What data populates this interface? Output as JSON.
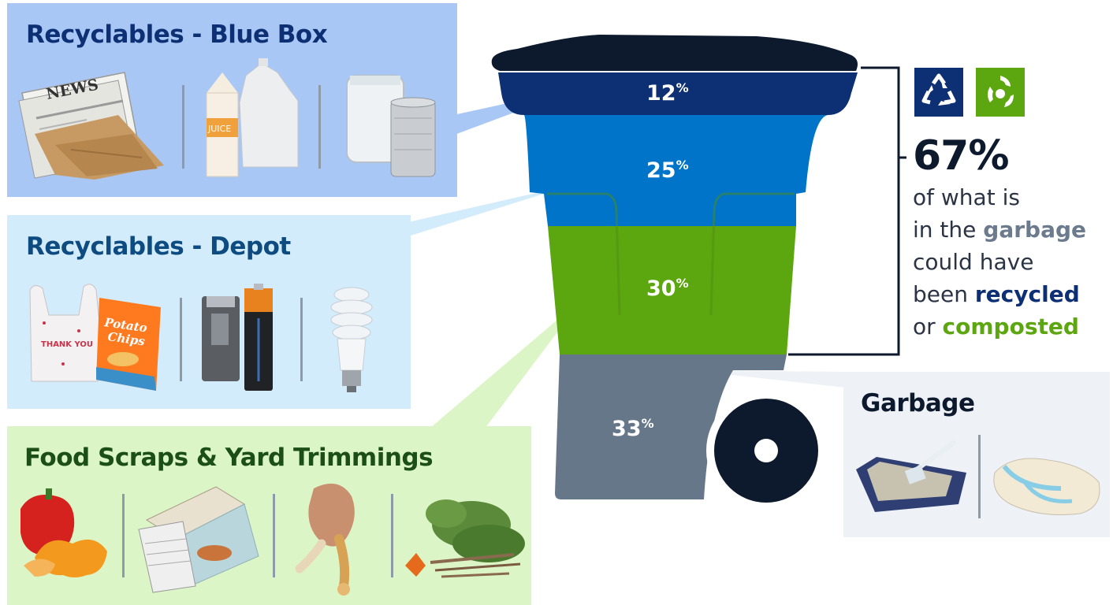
{
  "colors": {
    "blue_box": "#0d2f73",
    "depot": "#0074c8",
    "organics": "#5ca60f",
    "garbage": "#67778a",
    "lid": "#0d1a2e",
    "panel_blue_box": "#a9c7f4",
    "panel_depot": "#d2ecfb",
    "panel_organics": "#dcf5c6",
    "panel_garbage": "#eef1f6"
  },
  "categories": [
    {
      "title": "Recyclables - Blue Box",
      "percent": "12",
      "unit": "%",
      "value": 12
    },
    {
      "title": "Recyclables - Depot",
      "percent": "25",
      "unit": "%",
      "value": 25
    },
    {
      "title": "Food Scraps & Yard Trimmings",
      "percent": "30",
      "unit": "%",
      "value": 30
    },
    {
      "title": "Garbage",
      "percent": "33",
      "unit": "%",
      "value": 33
    }
  ],
  "summary": {
    "percent": "67%",
    "line1": "of what is",
    "line2_pre": "in the ",
    "line2_em": "garbage",
    "line3": "could have",
    "line4_pre": "been ",
    "line4_em": "recycled",
    "line5_pre": "or ",
    "line5_em": "composted"
  },
  "illustrations": {
    "blue_box": [
      "newspaper-icon",
      "juice-carton-icon",
      "glass-jar-icon"
    ],
    "depot": [
      "plastic-bag-icon",
      "battery-icon",
      "light-bulb-icon"
    ],
    "organics": [
      "pepper-peel-icon",
      "pizza-box-icon",
      "chicken-bone-icon",
      "yard-trimmings-icon"
    ],
    "garbage": [
      "litter-box-icon",
      "diaper-icon"
    ],
    "newspaper_text": "NEWS",
    "juice_text": "JUICE",
    "bag_text": "THANK YOU",
    "chips_text": "Potato Chips"
  }
}
